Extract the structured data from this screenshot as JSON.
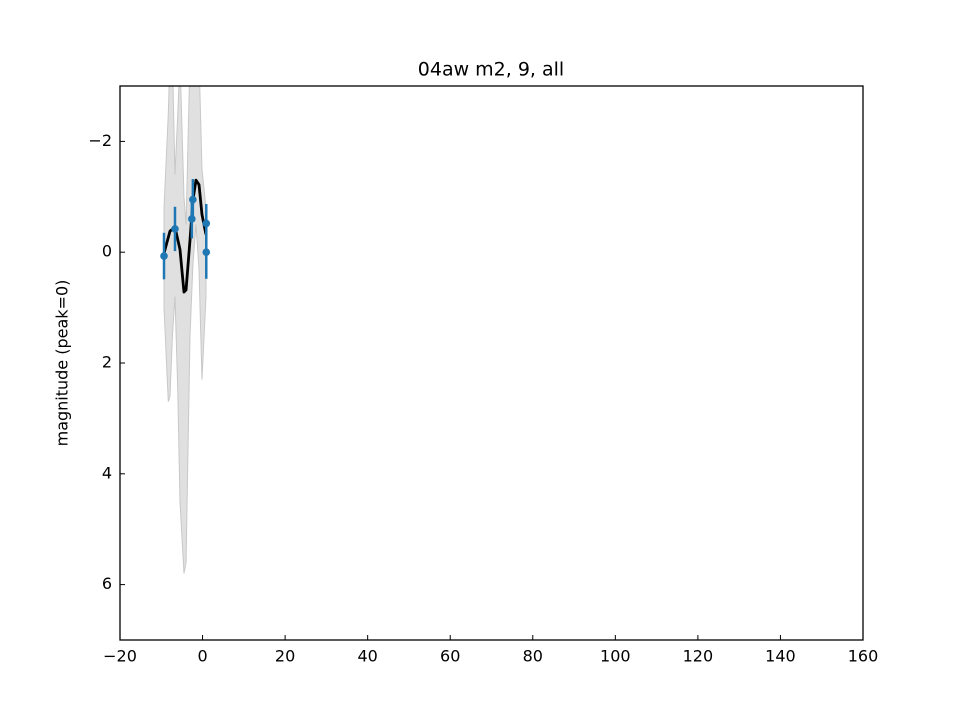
{
  "chart_data": {
    "type": "line",
    "title": "04aw m2, 9, all",
    "y_label": "magnitude (peak=0)",
    "xlim": [
      -20,
      160
    ],
    "xticks": [
      {
        "value": -20,
        "label": "−20"
      },
      0,
      20,
      40,
      60,
      80,
      100,
      120,
      140,
      160
    ],
    "ylim": [
      7,
      -3
    ],
    "yticks": [
      {
        "value": -2,
        "label": "−2"
      },
      0,
      2,
      4,
      6
    ],
    "band": {
      "color": "#d3d3d3",
      "x": [
        -9.34,
        -8.3,
        -7.89,
        -7.3,
        -6.68,
        -6.0,
        -5.47,
        -4.5,
        -4.0,
        -3.04,
        -2.32,
        -1.59,
        -0.86,
        -0.14,
        0.83
      ],
      "low": [
        -0.8,
        -2.5,
        -3.5,
        -3.5,
        -1.4,
        -2.5,
        -3.5,
        -1.0,
        -0.5,
        -3.5,
        -3.5,
        -3.5,
        -3.5,
        -1.5,
        -0.8
      ],
      "high": [
        1.0,
        2.7,
        2.6,
        1.5,
        0.8,
        2.5,
        4.5,
        5.8,
        5.6,
        1.5,
        0.2,
        -0.5,
        0.3,
        2.3,
        0.8
      ]
    },
    "model": {
      "color": "#000000",
      "x": [
        -9.34,
        -7.89,
        -6.68,
        -5.47,
        -4.5,
        -4.0,
        -3.04,
        -2.32,
        -1.59,
        -0.86,
        -0.14,
        0.83
      ],
      "values": [
        0.02,
        -0.38,
        -0.45,
        -0.05,
        0.72,
        0.68,
        -0.22,
        -0.95,
        -1.3,
        -1.22,
        -0.68,
        -0.32
      ]
    },
    "points": {
      "color": "#1f77b4",
      "x": [
        -9.34,
        -6.68,
        -2.6,
        -2.35,
        0.9,
        0.9
      ],
      "values": [
        0.07,
        -0.42,
        -0.6,
        -0.95,
        -0.52,
        0.0
      ],
      "errors": [
        0.42,
        0.4,
        0.35,
        0.37,
        0.35,
        0.48
      ]
    }
  }
}
